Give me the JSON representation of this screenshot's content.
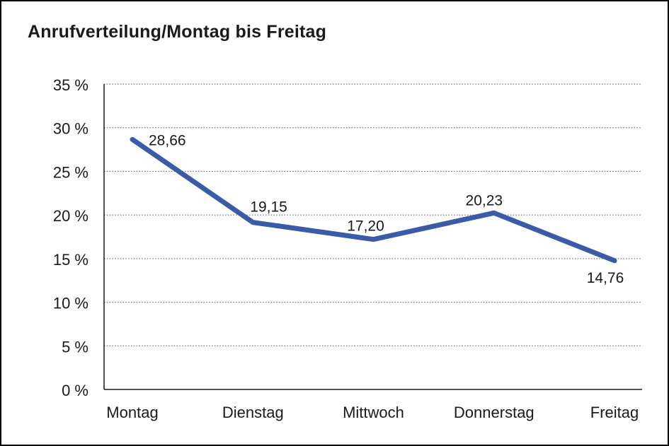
{
  "chart_data": {
    "type": "line",
    "title": "Anrufverteilung/Montag bis Freitag",
    "categories": [
      "Montag",
      "Dienstag",
      "Mittwoch",
      "Donnerstag",
      "Freitag"
    ],
    "values": [
      28.66,
      19.15,
      17.2,
      20.23,
      14.76
    ],
    "value_labels": [
      "28,66",
      "19,15",
      "17,20",
      "20,23",
      "14,76"
    ],
    "xlabel": "",
    "ylabel": "",
    "ylim": [
      0,
      35
    ],
    "ytick_step": 5,
    "ytick_labels": [
      "0 %",
      "5 %",
      "10 %",
      "15 %",
      "20 %",
      "25 %",
      "30 %",
      "35 %"
    ],
    "grid": "horizontal-dotted",
    "legend_position": "none",
    "colors": {
      "line": "#3A5BA7",
      "text": "#1A1A1A",
      "grid": "#555555",
      "axis": "#1A1A1A",
      "background": "#FFFFFF",
      "border": "#000000"
    }
  }
}
